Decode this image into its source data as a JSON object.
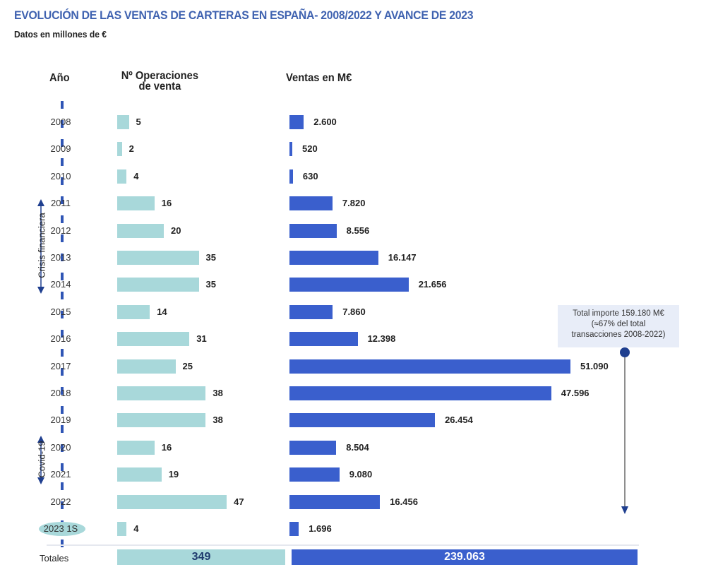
{
  "chart_data": {
    "type": "bar",
    "title": "EVOLUCIÓN DE LAS VENTAS DE CARTERAS EN ESPAÑA- 2008/2022 Y AVANCE DE 2023",
    "subtitle": "Datos en millones de €",
    "column_headers": {
      "year": "Año",
      "operations": "Nº Operaciones de venta",
      "sales": "Ventas en M€"
    },
    "categories": [
      "2008",
      "2009",
      "2010",
      "2011",
      "2012",
      "2013",
      "2014",
      "2015",
      "2016",
      "2017",
      "2018",
      "2019",
      "2020",
      "2021",
      "2022",
      "2023 1S"
    ],
    "series": [
      {
        "name": "Nº Operaciones de venta",
        "values": [
          5,
          2,
          4,
          16,
          20,
          35,
          35,
          14,
          31,
          25,
          38,
          38,
          16,
          19,
          47,
          4
        ],
        "labels": [
          "5",
          "2",
          "4",
          "16",
          "20",
          "35",
          "35",
          "14",
          "31",
          "25",
          "38",
          "38",
          "16",
          "19",
          "47",
          "4"
        ],
        "color": "#a8d8da"
      },
      {
        "name": "Ventas en M€",
        "values": [
          2600,
          520,
          630,
          7820,
          8556,
          16147,
          21656,
          7860,
          12398,
          51090,
          47596,
          26454,
          8504,
          9080,
          16456,
          1696
        ],
        "labels": [
          "2.600",
          "520",
          "630",
          "7.820",
          "8.556",
          "16.147",
          "21.656",
          "7.860",
          "12.398",
          "51.090",
          "47.596",
          "26.454",
          "8.504",
          "9.080",
          "16.456",
          "1.696"
        ],
        "color": "#3a5fcd"
      }
    ],
    "totals": {
      "label": "Totales",
      "operations": "349",
      "sales": "239.063"
    },
    "annotations": {
      "crisis": "Crisis financiera",
      "crisis_range": [
        "2011",
        "2014"
      ],
      "covid": "Covid-19",
      "covid_range": [
        "2020",
        "2021"
      ],
      "total_box": [
        "Total importe 159.180 M€",
        "(≈67% del total",
        "transacciones 2008-2022)"
      ],
      "total_box_range": [
        "2017",
        "2022"
      ]
    },
    "orientation": "horizontal"
  }
}
